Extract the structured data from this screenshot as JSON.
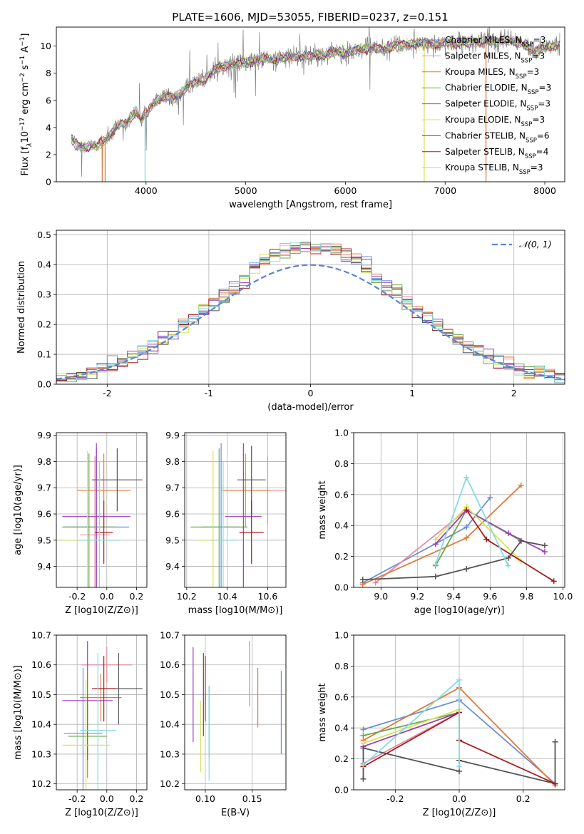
{
  "figure": {
    "title": "PLATE=1606, MJD=53055, FIBERID=0237, z=0.151"
  },
  "colors": [
    "#6b8fd6",
    "#e98a9e",
    "#e07b39",
    "#6aa84f",
    "#9b3fbd",
    "#d8e35a",
    "#555555",
    "#a61c1c",
    "#87dbe0"
  ],
  "legend_entries": [
    {
      "imf": "Chabrier",
      "lib": "MILES",
      "n": "3"
    },
    {
      "imf": "Salpeter",
      "lib": "MILES",
      "n": "3"
    },
    {
      "imf": "Kroupa",
      "lib": "MILES",
      "n": "3"
    },
    {
      "imf": "Chabrier",
      "lib": "ELODIE",
      "n": "3"
    },
    {
      "imf": "Salpeter",
      "lib": "ELODIE",
      "n": "3"
    },
    {
      "imf": "Kroupa",
      "lib": "ELODIE",
      "n": "3"
    },
    {
      "imf": "Chabrier",
      "lib": "STELIB",
      "n": "6"
    },
    {
      "imf": "Salpeter",
      "lib": "STELIB",
      "n": "4"
    },
    {
      "imf": "Kroupa",
      "lib": "STELIB",
      "n": "3"
    }
  ],
  "chart_data": [
    {
      "type": "line",
      "name": "spectrum",
      "xlabel": "wavelength [Angstrom, rest frame]",
      "ylabel_parts": [
        "Flux [f",
        "λ",
        "10",
        "−17",
        " erg cm",
        "−2",
        " s",
        "−1",
        " A",
        "−1",
        "]"
      ],
      "xlim": [
        3100,
        8200
      ],
      "ylim": [
        0,
        11.4
      ],
      "xticks": [
        4000,
        5000,
        6000,
        7000,
        8000
      ],
      "yticks": [
        0,
        2,
        4,
        6,
        8,
        10
      ],
      "spectrum_x": [
        3250,
        3300,
        3350,
        3400,
        3450,
        3500,
        3550,
        3600,
        3650,
        3700,
        3750,
        3800,
        3850,
        3900,
        3950,
        4000,
        4100,
        4200,
        4300,
        4400,
        4500,
        4600,
        4700,
        4800,
        4900,
        5000,
        5100,
        5200,
        5300,
        5400,
        5500,
        5600,
        5700,
        5800,
        5900,
        6000,
        6100,
        6200,
        6300,
        6400,
        6500,
        6600,
        6700,
        6800,
        6900,
        7000,
        7100,
        7200,
        7300,
        7400,
        7500,
        7600,
        7700,
        7800,
        7900,
        8000,
        8100
      ],
      "spectrum_y": [
        3.2,
        2.7,
        2.6,
        2.5,
        2.7,
        2.6,
        2.9,
        3.1,
        3.6,
        4.0,
        4.3,
        4.2,
        4.8,
        5.2,
        4.6,
        5.0,
        6.0,
        6.3,
        6.2,
        6.9,
        7.4,
        7.6,
        8.3,
        8.6,
        8.7,
        8.8,
        9.0,
        9.1,
        9.0,
        9.1,
        9.3,
        9.2,
        9.4,
        9.3,
        9.6,
        9.5,
        9.7,
        9.8,
        9.9,
        9.8,
        10.0,
        10.1,
        10.2,
        10.2,
        10.1,
        10.2,
        10.2,
        10.3,
        10.3,
        10.4,
        10.3,
        10.5,
        10.3,
        10.1,
        9.6,
        9.9,
        10.0
      ],
      "noise_amplitude": 1.2
    },
    {
      "type": "histogram",
      "name": "residuals",
      "xlabel": "(data-model)/error",
      "ylabel": "Normed distribution",
      "xlim": [
        -2.5,
        2.5
      ],
      "ylim": [
        0,
        0.515
      ],
      "xticks": [
        -2,
        -1,
        0,
        1,
        2
      ],
      "yticks": [
        0.0,
        0.1,
        0.2,
        0.3,
        0.4,
        0.5
      ],
      "bin_width": 0.1,
      "reference": {
        "label": "𝒩(0, 1)",
        "mu": 0,
        "sigma": 1,
        "color": "#5b84d4"
      }
    },
    {
      "type": "scatter",
      "name": "age-vs-Z",
      "xlabel": "Z [log10(Z/Z⊙)]",
      "ylabel": "age [log10(age/yr)]",
      "xlim": [
        -0.34,
        0.27
      ],
      "ylim": [
        9.32,
        9.91
      ],
      "xticks": [
        -0.2,
        0.0,
        0.2
      ],
      "yticks": [
        9.4,
        9.5,
        9.6,
        9.7,
        9.8,
        9.9
      ],
      "points": [
        {
          "x": -0.07,
          "y": 9.55,
          "xerr": 0.22,
          "yerr": 0.3
        },
        {
          "x": -0.08,
          "y": 9.52,
          "xerr": 0.1,
          "yerr": 0.3
        },
        {
          "x": -0.02,
          "y": 9.69,
          "xerr": 0.18,
          "yerr": 0.14
        },
        {
          "x": -0.12,
          "y": 9.55,
          "xerr": 0.18,
          "yerr": 0.28
        },
        {
          "x": -0.07,
          "y": 9.59,
          "xerr": 0.23,
          "yerr": 0.28
        },
        {
          "x": -0.13,
          "y": 9.5,
          "xerr": 0.17,
          "yerr": 0.34
        },
        {
          "x": 0.07,
          "y": 9.73,
          "xerr": 0.17,
          "yerr": 0.12
        },
        {
          "x": -0.02,
          "y": 9.53,
          "xerr": 0.06,
          "yerr": 0.12
        },
        {
          "x": -0.05,
          "y": 9.5,
          "xerr": 0.14,
          "yerr": 0.3
        }
      ]
    },
    {
      "type": "scatter",
      "name": "age-vs-mass",
      "xlabel": "mass [log10(M/M⊙)]",
      "ylabel": "",
      "xlim": [
        10.19,
        10.69
      ],
      "ylim": [
        9.32,
        9.91
      ],
      "xticks": [
        10.2,
        10.4,
        10.6
      ],
      "yticks": [
        9.4,
        9.5,
        9.6,
        9.7,
        9.8,
        9.9
      ],
      "points": [
        {
          "x": 10.37,
          "y": 9.55,
          "xerr": 0.09,
          "yerr": 0.32
        },
        {
          "x": 10.6,
          "y": 9.69,
          "xerr": 0.09,
          "yerr": 0.13
        },
        {
          "x": 10.49,
          "y": 9.69,
          "xerr": 0.12,
          "yerr": 0.14
        },
        {
          "x": 10.36,
          "y": 9.55,
          "xerr": 0.14,
          "yerr": 0.3
        },
        {
          "x": 10.48,
          "y": 9.59,
          "xerr": 0.09,
          "yerr": 0.28
        },
        {
          "x": 10.33,
          "y": 9.5,
          "xerr": 0.08,
          "yerr": 0.34
        },
        {
          "x": 10.52,
          "y": 9.73,
          "xerr": 0.07,
          "yerr": 0.13
        },
        {
          "x": 10.52,
          "y": 9.53,
          "xerr": 0.06,
          "yerr": 0.12
        },
        {
          "x": 10.38,
          "y": 9.5,
          "xerr": 0.06,
          "yerr": 0.3
        }
      ]
    },
    {
      "type": "line",
      "name": "massweight-vs-age",
      "xlabel": "age [log10(age/yr)]",
      "ylabel": "mass weight",
      "xlim": [
        8.85,
        10.01
      ],
      "ylim": [
        0,
        1
      ],
      "xticks": [
        9.0,
        9.2,
        9.4,
        9.6,
        9.8,
        10.0
      ],
      "yticks": [
        0.0,
        0.2,
        0.4,
        0.6,
        0.8,
        1.0
      ],
      "series": [
        {
          "x": [
            8.9,
            9.47,
            9.6
          ],
          "y": [
            0.03,
            0.39,
            0.58
          ]
        },
        {
          "x": [
            8.97,
            9.47
          ],
          "y": [
            0.03,
            0.5
          ]
        },
        {
          "x": [
            8.9,
            9.47,
            9.77
          ],
          "y": [
            0.02,
            0.32,
            0.66
          ]
        },
        {
          "x": [
            9.3,
            9.47,
            9.77
          ],
          "y": [
            0.14,
            0.5,
            0.3
          ]
        },
        {
          "x": [
            9.3,
            9.47,
            9.7,
            9.9
          ],
          "y": [
            0.28,
            0.5,
            0.35,
            0.23
          ]
        },
        {
          "x": [
            9.3,
            9.47,
            9.77
          ],
          "y": [
            0.31,
            0.52,
            0.17
          ]
        },
        {
          "x": [
            8.9,
            9.3,
            9.47,
            9.7,
            9.77,
            9.9
          ],
          "y": [
            0.05,
            0.07,
            0.12,
            0.19,
            0.3,
            0.27
          ]
        },
        {
          "x": [
            9.47,
            9.58,
            9.95
          ],
          "y": [
            0.5,
            0.31,
            0.04
          ]
        },
        {
          "x": [
            9.3,
            9.47,
            9.7
          ],
          "y": [
            0.15,
            0.71,
            0.14
          ]
        }
      ]
    },
    {
      "type": "scatter",
      "name": "mass-vs-Z",
      "xlabel": "Z [log10(Z/Z⊙)]",
      "ylabel": "mass [log10(M/M⊙)]",
      "xlim": [
        -0.34,
        0.27
      ],
      "ylim": [
        10.18,
        10.7
      ],
      "xticks": [
        -0.2,
        0.0,
        0.2
      ],
      "yticks": [
        10.2,
        10.3,
        10.4,
        10.5,
        10.6,
        10.7
      ],
      "points": [
        {
          "x": -0.16,
          "y": 10.37,
          "xerr": 0.13,
          "yerr": 0.22
        },
        {
          "x": 0.0,
          "y": 10.6,
          "xerr": 0.17,
          "yerr": 0.06
        },
        {
          "x": -0.04,
          "y": 10.49,
          "xerr": 0.14,
          "yerr": 0.08
        },
        {
          "x": -0.13,
          "y": 10.36,
          "xerr": 0.13,
          "yerr": 0.14
        },
        {
          "x": -0.13,
          "y": 10.48,
          "xerr": 0.17,
          "yerr": 0.2
        },
        {
          "x": -0.14,
          "y": 10.33,
          "xerr": 0.16,
          "yerr": 0.22
        },
        {
          "x": 0.08,
          "y": 10.52,
          "xerr": 0.16,
          "yerr": 0.12
        },
        {
          "x": -0.02,
          "y": 10.52,
          "xerr": 0.08,
          "yerr": 0.11
        },
        {
          "x": -0.06,
          "y": 10.38,
          "xerr": 0.12,
          "yerr": 0.26
        }
      ]
    },
    {
      "type": "scatter",
      "name": "mass-vs-EBV",
      "xlabel": "E(B-V)",
      "ylabel": "",
      "xlim": [
        0.078,
        0.186
      ],
      "ylim": [
        10.18,
        10.7
      ],
      "xticks": [
        0.1,
        0.15
      ],
      "yticks": [
        10.2,
        10.3,
        10.4,
        10.5,
        10.6,
        10.7
      ],
      "points": [
        {
          "x": 0.181,
          "y": 10.44,
          "xerr": 0,
          "yerr": 0.14
        },
        {
          "x": 0.147,
          "y": 10.57,
          "xerr": 0,
          "yerr": 0.11
        },
        {
          "x": 0.156,
          "y": 10.49,
          "xerr": 0,
          "yerr": 0.1
        },
        {
          "x": 0.104,
          "y": 10.41,
          "xerr": 0,
          "yerr": 0.12
        },
        {
          "x": 0.087,
          "y": 10.5,
          "xerr": 0,
          "yerr": 0.16
        },
        {
          "x": 0.095,
          "y": 10.36,
          "xerr": 0,
          "yerr": 0.12
        },
        {
          "x": 0.098,
          "y": 10.5,
          "xerr": 0,
          "yerr": 0.14
        },
        {
          "x": 0.1,
          "y": 10.52,
          "xerr": 0,
          "yerr": 0.11
        },
        {
          "x": 0.104,
          "y": 10.37,
          "xerr": 0,
          "yerr": 0.16
        }
      ]
    },
    {
      "type": "line",
      "name": "massweight-vs-Z",
      "xlabel": "Z [log10(Z/Z⊙)]",
      "ylabel": "mass weight",
      "xlim": [
        -0.33,
        0.33
      ],
      "ylim": [
        0,
        1
      ],
      "xticks": [
        -0.2,
        0.0,
        0.2
      ],
      "yticks": [
        0.0,
        0.2,
        0.4,
        0.6,
        0.8,
        1.0
      ],
      "series": [
        {
          "x": [
            -0.3,
            0.0,
            0.3
          ],
          "y": [
            0.39,
            0.58,
            0.04
          ]
        },
        {
          "x": [
            -0.3,
            0.0
          ],
          "y": [
            0.17,
            0.5
          ]
        },
        {
          "x": [
            -0.3,
            0.0,
            0.3
          ],
          "y": [
            0.32,
            0.66,
            0.03
          ]
        },
        {
          "x": [
            -0.3,
            0.0
          ],
          "y": [
            0.35,
            0.5
          ]
        },
        {
          "x": [
            -0.3,
            0.0
          ],
          "y": [
            0.28,
            0.5
          ]
        },
        {
          "x": [
            -0.3,
            0.0
          ],
          "y": [
            0.3,
            0.52
          ]
        },
        {
          "x": [
            -0.3,
            -0.3,
            0.0,
            0.0,
            0.3,
            0.3
          ],
          "y": [
            0.07,
            0.27,
            0.12,
            0.19,
            0.04,
            0.31
          ]
        },
        {
          "x": [
            -0.3,
            0.0,
            0.0,
            0.3
          ],
          "y": [
            0.15,
            0.5,
            0.32,
            0.04
          ]
        },
        {
          "x": [
            -0.3,
            0.0,
            0.0
          ],
          "y": [
            0.16,
            0.71,
            0.15
          ]
        }
      ]
    }
  ]
}
